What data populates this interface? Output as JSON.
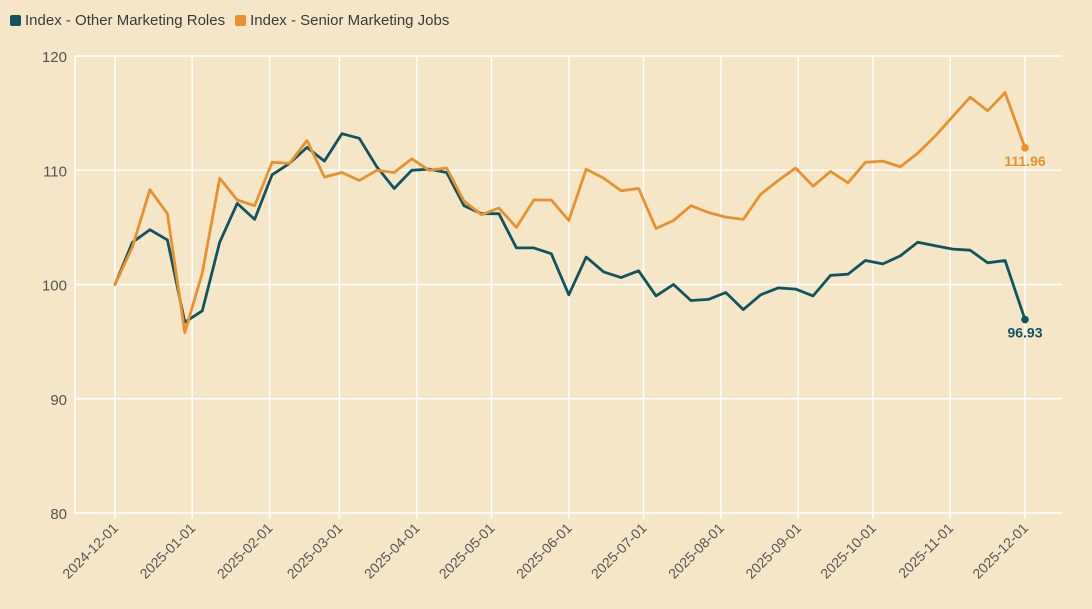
{
  "chart_data": {
    "type": "line",
    "title": "",
    "xlabel": "",
    "ylabel": "",
    "ylim": [
      80,
      120
    ],
    "yticks": [
      80,
      90,
      100,
      110,
      120
    ],
    "grid": true,
    "legend_position": "top-left",
    "x_tick_labels": [
      "2024-12-01",
      "2025-01-01",
      "2025-02-01",
      "2025-03-01",
      "2025-04-01",
      "2025-05-01",
      "2025-06-01",
      "2025-07-01",
      "2025-08-01",
      "2025-09-01",
      "2025-10-01",
      "2025-11-01",
      "2025-12-01"
    ],
    "x_range_days": [
      0,
      365
    ],
    "x_tick_days": [
      0,
      31,
      62,
      90,
      121,
      151,
      182,
      212,
      243,
      274,
      304,
      335,
      365
    ],
    "x_days": [
      0,
      7,
      14,
      21,
      28,
      35,
      42,
      49,
      56,
      63,
      70,
      77,
      84,
      91,
      98,
      105,
      112,
      119,
      126,
      133,
      140,
      147,
      154,
      161,
      168,
      175,
      182,
      189,
      196,
      203,
      210,
      217,
      224,
      231,
      238,
      245,
      252,
      259,
      266,
      273,
      280,
      287,
      294,
      301,
      308,
      315,
      322,
      329,
      336,
      343,
      350,
      357,
      365
    ],
    "series": [
      {
        "name": "Index - Other Marketing Roles",
        "color": "#0f5460",
        "values": [
          100.0,
          103.7,
          104.8,
          103.9,
          96.7,
          97.7,
          103.7,
          107.1,
          105.7,
          109.6,
          110.6,
          112.0,
          110.8,
          113.2,
          112.8,
          110.3,
          108.4,
          110.0,
          110.1,
          109.8,
          106.9,
          106.2,
          106.2,
          103.2,
          103.2,
          102.7,
          99.1,
          102.4,
          101.1,
          100.6,
          101.2,
          99.0,
          100.0,
          98.6,
          98.7,
          99.3,
          97.8,
          99.1,
          99.7,
          99.6,
          99.0,
          100.8,
          100.9,
          102.1,
          101.8,
          102.5,
          103.7,
          103.4,
          103.1,
          103.0,
          101.9,
          102.1,
          96.93
        ],
        "end_label": "96.93"
      },
      {
        "name": "Index - Senior Marketing Jobs",
        "color": "#e8912e",
        "values": [
          100.0,
          103.3,
          108.3,
          106.2,
          95.8,
          101.0,
          109.3,
          107.4,
          106.9,
          110.7,
          110.6,
          112.6,
          109.4,
          109.8,
          109.1,
          110.0,
          109.8,
          111.0,
          110.0,
          110.2,
          107.3,
          106.1,
          106.7,
          105.0,
          107.4,
          107.4,
          105.6,
          110.1,
          109.3,
          108.2,
          108.4,
          104.9,
          105.6,
          106.9,
          106.3,
          105.9,
          105.7,
          107.9,
          109.1,
          110.2,
          108.6,
          109.9,
          108.9,
          110.7,
          110.8,
          110.3,
          111.5,
          113.0,
          114.7,
          116.4,
          115.2,
          116.8,
          111.96
        ],
        "end_label": "111.96"
      }
    ]
  },
  "colors": {
    "background": "#f5e6c8",
    "grid": "#ffffff",
    "axis_text": "#555555"
  }
}
